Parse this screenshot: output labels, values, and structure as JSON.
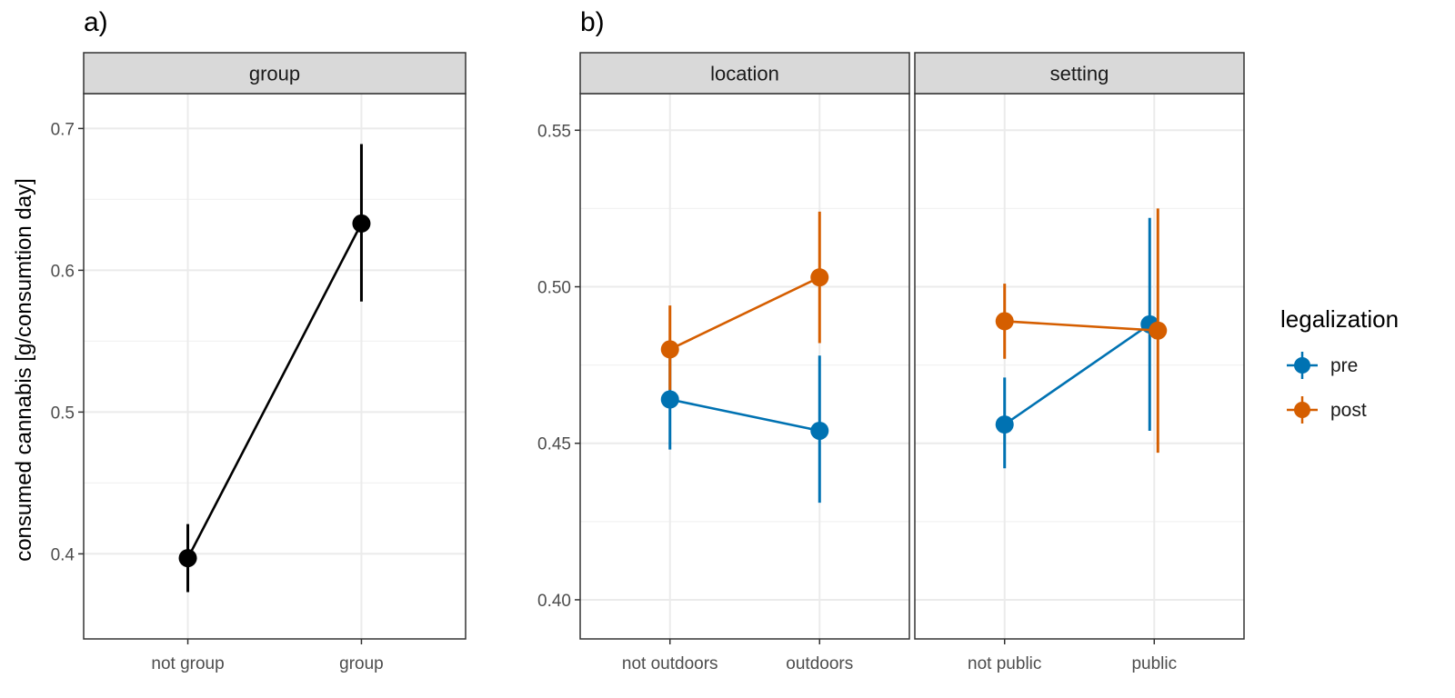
{
  "figure": {
    "tag_a": "a)",
    "tag_b": "b)",
    "ylabel": "consumed cannabis [g/consumtion day]"
  },
  "legend": {
    "title": "legalization",
    "items": [
      {
        "label": "pre",
        "color": "#0072B2"
      },
      {
        "label": "post",
        "color": "#D55E00"
      }
    ]
  },
  "chart_data": [
    {
      "type": "line",
      "panel": "a",
      "strip": "group",
      "categories": [
        "not group",
        "group"
      ],
      "ylim": [
        0.34,
        0.7246
      ],
      "yticks": [
        0.4,
        0.5,
        0.6,
        0.7
      ],
      "ytick_labels": [
        "0.4",
        "0.5",
        "0.6",
        "0.7"
      ],
      "grid": true,
      "series": [
        {
          "color": "#000000",
          "values": [
            0.397,
            0.633
          ],
          "lower": [
            0.373,
            0.578
          ],
          "upper": [
            0.421,
            0.689
          ]
        }
      ]
    },
    {
      "type": "line",
      "panel": "b",
      "facets": [
        {
          "strip": "location",
          "categories": [
            "not outdoors",
            "outdoors"
          ]
        },
        {
          "strip": "setting",
          "categories": [
            "not public",
            "public"
          ]
        }
      ],
      "ylim": [
        0.3875,
        0.5617
      ],
      "yticks": [
        0.4,
        0.45,
        0.5,
        0.55
      ],
      "ytick_labels": [
        "0.40",
        "0.45",
        "0.50",
        "0.55"
      ],
      "grid": true,
      "legend_position": "right",
      "series": [
        {
          "name": "pre",
          "color": "#0072B2",
          "facet_values": [
            [
              0.464,
              0.454
            ],
            [
              0.456,
              0.488
            ]
          ],
          "facet_lower": [
            [
              0.448,
              0.431
            ],
            [
              0.442,
              0.454
            ]
          ],
          "facet_upper": [
            [
              0.48,
              0.478
            ],
            [
              0.471,
              0.522
            ]
          ]
        },
        {
          "name": "post",
          "color": "#D55E00",
          "facet_values": [
            [
              0.48,
              0.503
            ],
            [
              0.489,
              0.486
            ]
          ],
          "facet_lower": [
            [
              0.467,
              0.482
            ],
            [
              0.477,
              0.447
            ]
          ],
          "facet_upper": [
            [
              0.494,
              0.524
            ],
            [
              0.501,
              0.525
            ]
          ]
        }
      ]
    }
  ]
}
